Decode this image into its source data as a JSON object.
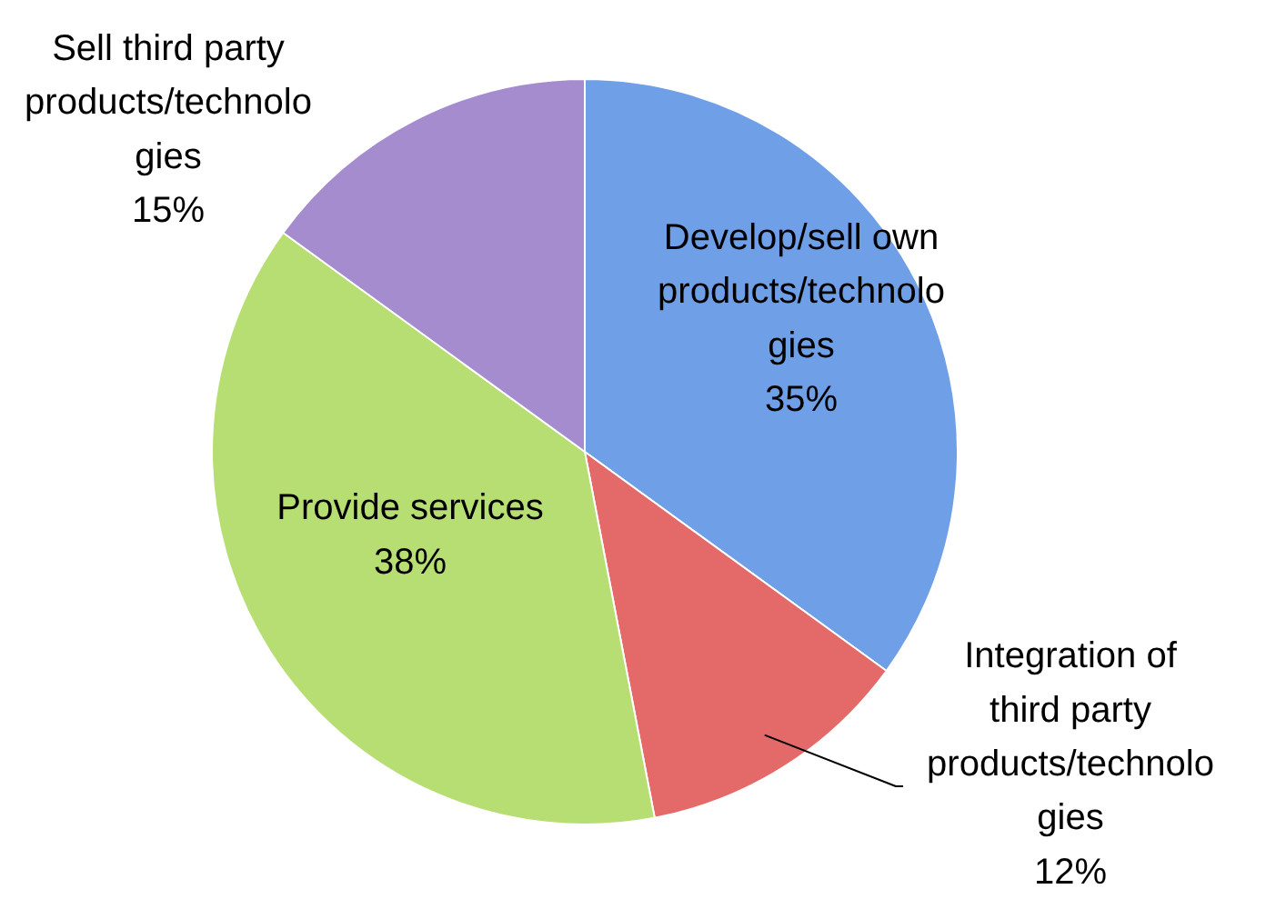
{
  "chart_data": {
    "type": "pie",
    "categories": [
      "Develop/sell own\nproducts/technolo\ngies",
      "Integration of\nthird party\nproducts/technolo\ngies",
      "Provide services",
      "Sell third party\nproducts/technolo\ngies"
    ],
    "values": [
      35,
      12,
      38,
      15
    ],
    "colors": [
      "#6f9fe6",
      "#e46a6a",
      "#b7de72",
      "#a48ccf"
    ],
    "value_labels": [
      "35%",
      "12%",
      "38%",
      "15%"
    ]
  }
}
